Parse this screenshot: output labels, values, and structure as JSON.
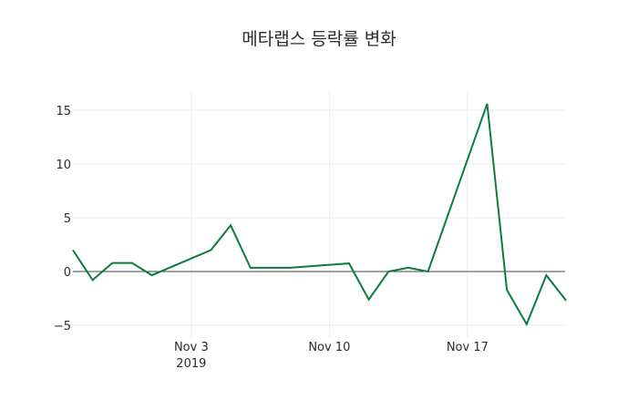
{
  "chart_data": {
    "type": "line",
    "title": "메타랩스 등락률 변화",
    "xlabel": "",
    "ylabel": "",
    "x": [
      "2019-10-28",
      "2019-10-29",
      "2019-10-30",
      "2019-10-31",
      "2019-11-01",
      "2019-11-04",
      "2019-11-05",
      "2019-11-06",
      "2019-11-08",
      "2019-11-11",
      "2019-11-12",
      "2019-11-13",
      "2019-11-14",
      "2019-11-15",
      "2019-11-18",
      "2019-11-19",
      "2019-11-20",
      "2019-11-21",
      "2019-11-22"
    ],
    "series": [
      {
        "name": "등락률",
        "color": "#0a7c3e",
        "values": [
          2.0,
          -0.8,
          0.8,
          0.8,
          -0.35,
          2.0,
          4.3,
          0.35,
          0.35,
          0.75,
          -2.6,
          0.0,
          0.35,
          0.0,
          15.6,
          -1.7,
          -4.9,
          -0.35,
          -2.7
        ]
      }
    ],
    "xrange": [
      "2019-10-28",
      "2019-11-22"
    ],
    "ylim": [
      -6,
      17
    ],
    "y_ticks": [
      15,
      10,
      5,
      0,
      -5
    ],
    "y_tick_labels": [
      "15",
      "10",
      "5",
      "0",
      "−5"
    ],
    "x_ticks": [
      "2019-11-03",
      "2019-11-10",
      "2019-11-17"
    ],
    "x_tick_labels": [
      [
        "Nov 3",
        "2019"
      ],
      [
        "Nov 10"
      ],
      [
        "Nov 17"
      ]
    ],
    "grid": true,
    "zero_line": true,
    "legend": "none"
  }
}
